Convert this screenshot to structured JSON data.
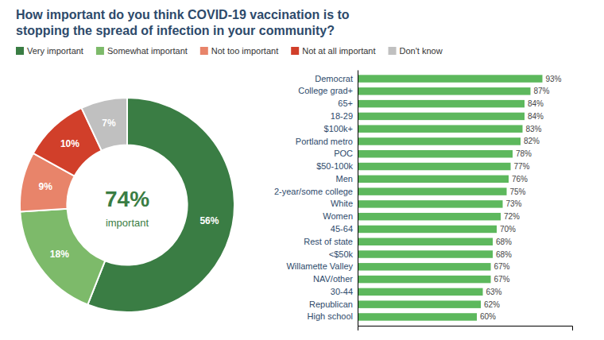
{
  "chart_data": [
    {
      "type": "pie",
      "title": "How important do you think COVID-19 vaccination is to",
      "subtitle": "stopping the spread of infection in your community?",
      "categories": [
        "Very important",
        "Somewhat important",
        "Not too important",
        "Not at all important",
        "Don't know"
      ],
      "values": [
        56,
        18,
        9,
        10,
        7
      ],
      "value_labels": [
        "56%",
        "18%",
        "9%",
        "10%",
        "7%"
      ],
      "colors": [
        "#3a7d44",
        "#7dba6a",
        "#e8846a",
        "#d13f2a",
        "#c0c0c0"
      ],
      "data_labels": true,
      "legend": "top",
      "annotations": [
        "74%",
        "important"
      ]
    },
    {
      "type": "bar",
      "orientation": "horizontal",
      "categories": [
        "Democrat",
        "College grad+",
        "65+",
        "18-29",
        "$100k+",
        "Portland metro",
        "POC",
        "$50-100k",
        "Men",
        "2-year/some college",
        "White",
        "Women",
        "45-64",
        "Rest of state",
        "<$50k",
        "Willamette Valley",
        "NAV/other",
        "30-44",
        "Republican",
        "High school"
      ],
      "values": [
        93,
        87,
        84,
        84,
        83,
        82,
        78,
        77,
        76,
        75,
        73,
        72,
        70,
        68,
        68,
        67,
        67,
        63,
        62,
        60
      ],
      "value_labels": [
        "93%",
        "87%",
        "84%",
        "84%",
        "83%",
        "82%",
        "78%",
        "77%",
        "76%",
        "75%",
        "73%",
        "72%",
        "70%",
        "68%",
        "68%",
        "67%",
        "67%",
        "63%",
        "62%",
        "60%"
      ],
      "color": "#5db85d",
      "data_labels": true,
      "xlim": [
        0,
        108
      ],
      "xticks": [],
      "tick_labels": "y",
      "grid": false
    }
  ]
}
